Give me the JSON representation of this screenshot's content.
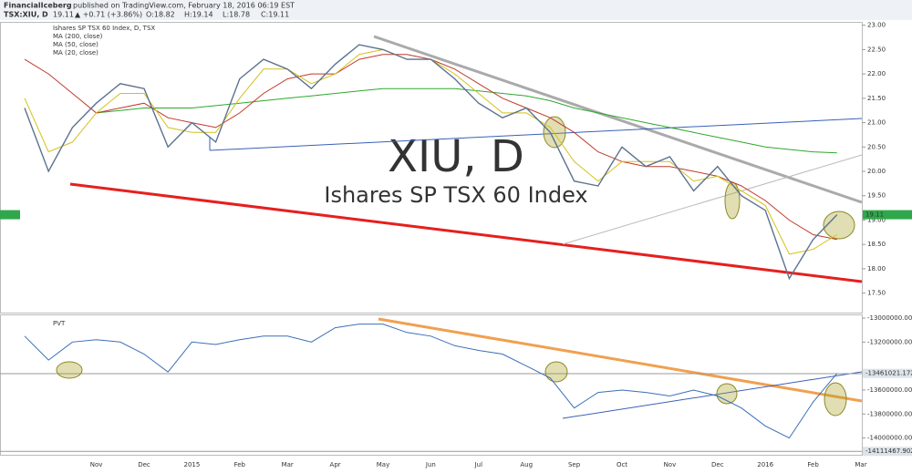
{
  "header": {
    "author": "FinancialIceberg",
    "published": "published on TradingView.com, February 18, 2016 06:19 EST",
    "symbol": "TSX:XIU, D",
    "last": "19.11",
    "change": "▲ +0.71 (+3.86%)",
    "open": "O:18.82",
    "high": "H:19.14",
    "low": "L:18.78",
    "close": "C:19.11"
  },
  "chart_data": {
    "type": "line",
    "title": "Ishares SP TSX 60 Index, D, TSX",
    "watermark": "XIU, D",
    "watermark_subtitle": "Ishares SP TSX 60 Index",
    "categories": [
      null,
      null,
      null,
      "Nov",
      null,
      "Dec",
      null,
      "2015",
      null,
      "Feb",
      null,
      "Mar",
      null,
      "Apr",
      null,
      "May",
      null,
      "Jun",
      null,
      "Jul",
      null,
      "Aug",
      null,
      "Sep",
      null,
      "Oct",
      null,
      "Nov",
      null,
      "Dec",
      null,
      "2016",
      null,
      "Feb",
      null,
      "Mar"
    ],
    "close": {
      "color": "#5b7290",
      "values": [
        21.3,
        20.0,
        20.9,
        21.4,
        21.8,
        21.7,
        20.5,
        21.0,
        20.6,
        21.9,
        22.3,
        22.1,
        21.7,
        22.2,
        22.6,
        22.5,
        22.3,
        22.3,
        21.9,
        21.4,
        21.1,
        21.3,
        20.8,
        19.8,
        19.7,
        20.5,
        20.1,
        20.3,
        19.6,
        20.1,
        19.5,
        19.2,
        17.8,
        18.6,
        19.11,
        null
      ]
    },
    "last_value": 19.11,
    "series": [
      {
        "name": "MA (200, close)",
        "color": "#2ea82e",
        "values": [
          null,
          null,
          null,
          21.2,
          21.25,
          21.3,
          21.3,
          21.3,
          21.35,
          21.4,
          21.45,
          21.5,
          21.55,
          21.6,
          21.65,
          21.7,
          21.7,
          21.7,
          21.7,
          21.65,
          21.6,
          21.55,
          21.45,
          21.3,
          21.2,
          21.1,
          21.0,
          20.9,
          20.8,
          20.7,
          20.6,
          20.5,
          20.45,
          20.4,
          20.38,
          null
        ]
      },
      {
        "name": "MA (50, close)",
        "color": "#c0392b",
        "values": [
          22.3,
          22.0,
          21.6,
          21.2,
          21.3,
          21.4,
          21.1,
          21.0,
          20.9,
          21.2,
          21.6,
          21.9,
          22.0,
          22.0,
          22.3,
          22.4,
          22.4,
          22.3,
          22.1,
          21.8,
          21.5,
          21.3,
          21.1,
          20.8,
          20.4,
          20.2,
          20.1,
          20.1,
          20.0,
          19.9,
          19.7,
          19.4,
          19.0,
          18.7,
          18.6,
          null
        ]
      },
      {
        "name": "MA (20, close)",
        "color": "#d4c21a",
        "values": [
          21.5,
          20.4,
          20.6,
          21.2,
          21.6,
          21.6,
          20.9,
          20.8,
          20.8,
          21.5,
          22.1,
          22.1,
          21.8,
          22.0,
          22.4,
          22.5,
          22.3,
          22.3,
          22.0,
          21.6,
          21.2,
          21.2,
          20.9,
          20.2,
          19.8,
          20.2,
          20.2,
          20.2,
          19.8,
          19.9,
          19.6,
          19.3,
          18.3,
          18.4,
          18.7,
          null
        ]
      }
    ],
    "ylim": [
      17.1,
      23.05
    ],
    "yticks": [
      {
        "value": 17.5,
        "label": "17.50"
      },
      {
        "value": 18,
        "label": "18.00"
      },
      {
        "value": 18.5,
        "label": "18.50"
      },
      {
        "value": 19,
        "label": "19.00"
      },
      {
        "value": 19.5,
        "label": "19.50"
      },
      {
        "value": 20,
        "label": "20.00"
      },
      {
        "value": 20.5,
        "label": "20.50"
      },
      {
        "value": 21,
        "label": "21.00"
      },
      {
        "value": 21.5,
        "label": "21.50"
      },
      {
        "value": 22,
        "label": "22.00"
      },
      {
        "value": 22.5,
        "label": "22.50"
      },
      {
        "value": 23,
        "label": "23.00"
      }
    ],
    "lower_panel": {
      "title": "PVT",
      "color": "#3b6fb6",
      "values": [
        -13150000,
        -13350000,
        -13200000,
        -13180000,
        -13200000,
        -13300000,
        -13450000,
        -13200000,
        -13220000,
        -13180000,
        -13150000,
        -13150000,
        -13200000,
        -13080000,
        -13050000,
        -13050000,
        -13120000,
        -13150000,
        -13230000,
        -13270000,
        -13300000,
        -13400000,
        -13500000,
        -13750000,
        -13620000,
        -13600000,
        -13620000,
        -13650000,
        -13600000,
        -13650000,
        -13750000,
        -13900000,
        -14000000,
        -13700000,
        -13461021.1721,
        null
      ],
      "ylim": [
        -14140000,
        -12977000
      ],
      "yticks": [
        {
          "value": -13000000,
          "label": "-13000000.0000"
        },
        {
          "value": -13200000,
          "label": "-13200000.0000"
        },
        {
          "value": -13600000,
          "label": "-13600000.0000"
        },
        {
          "value": -13800000,
          "label": "-13800000.0000"
        },
        {
          "value": -14000000,
          "label": "-14000000.0000"
        }
      ],
      "last_value": -13461021.1721,
      "low_value": -14111467.9029
    }
  }
}
